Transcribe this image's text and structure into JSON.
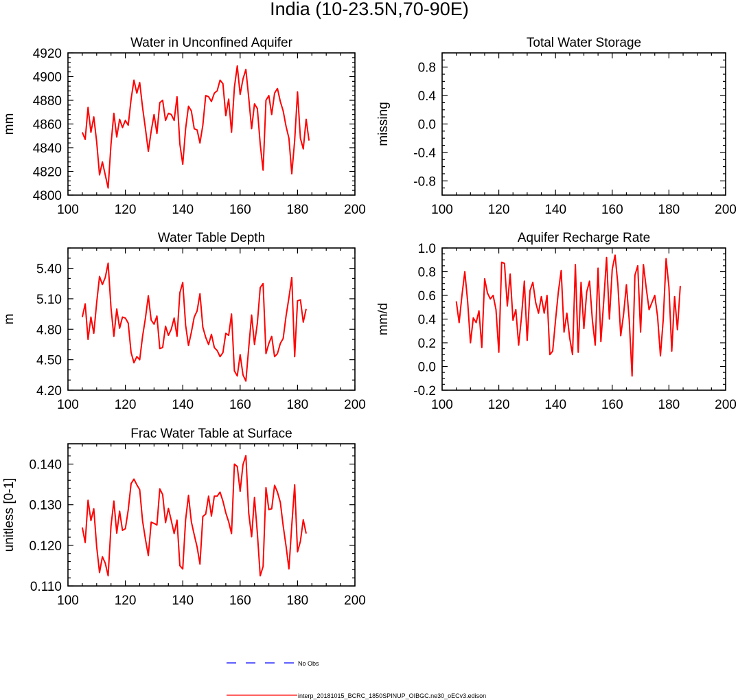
{
  "figure": {
    "title": "India (10-23.5N,70-90E)",
    "legend": {
      "obs_label": "No Obs",
      "model_label": "interp_20181015_BCRC_1850SPINUP_OIBGC.ne30_oECv3.edison",
      "obs_color": "#0000ff",
      "model_color": "#ff0000"
    }
  },
  "chart_data": [
    {
      "type": "line",
      "title": "Water in Unconfined Aquifer",
      "ylabel": "mm",
      "xlim": [
        100,
        200
      ],
      "ylim": [
        4800,
        4920
      ],
      "xticks": [
        100,
        120,
        140,
        160,
        180,
        200
      ],
      "xtick_labels": [
        "100",
        "120",
        "140",
        "160",
        "180",
        "200"
      ],
      "yticks": [
        4800,
        4820,
        4840,
        4860,
        4880,
        4900,
        4920
      ],
      "ytick_labels": [
        "4800",
        "4820",
        "4840",
        "4860",
        "4880",
        "4900",
        "4920"
      ],
      "yminor": 5,
      "grid": false,
      "x_start": 105,
      "series": [
        {
          "color": "#ff0000",
          "values": [
            4853,
            4847,
            4874,
            4853,
            4866,
            4845,
            4817,
            4828,
            4817,
            4806,
            4843,
            4869,
            4849,
            4864,
            4857,
            4863,
            4859,
            4881,
            4897,
            4886,
            4895,
            4874,
            4856,
            4837,
            4854,
            4868,
            4852,
            4878,
            4880,
            4863,
            4869,
            4868,
            4863,
            4883,
            4843,
            4826,
            4856,
            4875,
            4871,
            4856,
            4855,
            4844,
            4859,
            4884,
            4883,
            4879,
            4886,
            4888,
            4897,
            4894,
            4867,
            4881,
            4853,
            4891,
            4909,
            4885,
            4898,
            4906,
            4882,
            4856,
            4877,
            4873,
            4843,
            4821,
            4880,
            4884,
            4868,
            4886,
            4890,
            4879,
            4871,
            4858,
            4848,
            4818,
            4846,
            4887,
            4848,
            4839,
            4864,
            4846
          ]
        }
      ]
    },
    {
      "type": "line",
      "title": "Total Water Storage",
      "ylabel": "missing",
      "xlim": [
        100,
        200
      ],
      "ylim": [
        -1,
        1
      ],
      "xticks": [
        100,
        120,
        140,
        160,
        180,
        200
      ],
      "xtick_labels": [
        "100",
        "120",
        "140",
        "160",
        "180",
        "200"
      ],
      "yticks": [
        -0.8,
        -0.4,
        0.0,
        0.4,
        0.8
      ],
      "ytick_labels": [
        "-0.8",
        "-0.4",
        "0.0",
        "0.4",
        "0.8"
      ],
      "yminor": 4,
      "grid": false,
      "series": []
    },
    {
      "type": "line",
      "title": "Water Table Depth",
      "ylabel": "m",
      "xlim": [
        100,
        200
      ],
      "ylim": [
        4.2,
        5.6
      ],
      "xticks": [
        100,
        120,
        140,
        160,
        180,
        200
      ],
      "xtick_labels": [
        "100",
        "120",
        "140",
        "160",
        "180",
        "200"
      ],
      "yticks": [
        4.2,
        4.5,
        4.8,
        5.1,
        5.4
      ],
      "ytick_labels": [
        "4.20",
        "4.50",
        "4.80",
        "5.10",
        "5.40"
      ],
      "yminor": 3,
      "grid": false,
      "x_start": 105,
      "series": [
        {
          "color": "#ff0000",
          "values": [
            4.92,
            5.05,
            4.7,
            4.92,
            4.76,
            5.06,
            5.32,
            5.24,
            5.31,
            5.45,
            5.01,
            4.73,
            5.0,
            4.81,
            4.92,
            4.91,
            4.86,
            4.57,
            4.47,
            4.53,
            4.5,
            4.73,
            4.91,
            5.13,
            4.89,
            4.85,
            4.93,
            4.61,
            4.62,
            4.83,
            4.74,
            4.8,
            4.91,
            4.73,
            5.16,
            5.26,
            4.84,
            4.64,
            4.77,
            4.92,
            4.98,
            5.15,
            4.82,
            4.72,
            4.65,
            4.75,
            4.62,
            4.59,
            4.53,
            4.57,
            4.76,
            4.74,
            4.95,
            4.39,
            4.34,
            4.55,
            4.35,
            4.29,
            4.62,
            4.94,
            4.65,
            4.86,
            5.21,
            5.25,
            4.56,
            4.66,
            4.73,
            4.53,
            4.56,
            4.66,
            4.71,
            4.93,
            5.11,
            5.31,
            4.53,
            5.08,
            5.09,
            4.87,
            5.0
          ]
        }
      ]
    },
    {
      "type": "line",
      "title": "Aquifer Recharge Rate",
      "ylabel": "mm/d",
      "xlim": [
        100,
        200
      ],
      "ylim": [
        -0.2,
        1.0
      ],
      "xticks": [
        100,
        120,
        140,
        160,
        180,
        200
      ],
      "xtick_labels": [
        "100",
        "120",
        "140",
        "160",
        "180",
        "200"
      ],
      "yticks": [
        -0.2,
        0.0,
        0.2,
        0.4,
        0.6,
        0.8,
        1.0
      ],
      "ytick_labels": [
        "-0.2",
        "0.0",
        "0.2",
        "0.4",
        "0.6",
        "0.8",
        "1.0"
      ],
      "yminor": 4,
      "grid": false,
      "x_start": 105,
      "series": [
        {
          "color": "#ff0000",
          "values": [
            0.55,
            0.37,
            0.6,
            0.8,
            0.55,
            0.2,
            0.41,
            0.37,
            0.47,
            0.16,
            0.74,
            0.62,
            0.57,
            0.6,
            0.48,
            0.12,
            0.88,
            0.87,
            0.51,
            0.78,
            0.39,
            0.48,
            0.18,
            0.42,
            0.72,
            0.22,
            0.64,
            0.71,
            0.54,
            0.45,
            0.59,
            0.45,
            0.6,
            0.1,
            0.13,
            0.39,
            0.63,
            0.81,
            0.29,
            0.45,
            0.24,
            0.1,
            0.86,
            0.12,
            0.71,
            0.32,
            0.63,
            0.72,
            0.39,
            0.18,
            0.83,
            0.21,
            0.55,
            0.92,
            0.4,
            0.82,
            0.94,
            0.69,
            0.26,
            0.44,
            0.69,
            0.39,
            -0.08,
            0.77,
            0.85,
            0.29,
            0.86,
            0.66,
            0.48,
            0.54,
            0.6,
            0.42,
            0.09,
            0.4,
            0.91,
            0.67,
            0.13,
            0.59,
            0.31,
            0.68
          ]
        }
      ]
    },
    {
      "type": "line",
      "title": "Frac Water Table at Surface",
      "ylabel": "unitless [0-1]",
      "xlim": [
        100,
        200
      ],
      "ylim": [
        0.11,
        0.145
      ],
      "xticks": [
        100,
        120,
        140,
        160,
        180,
        200
      ],
      "xtick_labels": [
        "100",
        "120",
        "140",
        "160",
        "180",
        "200"
      ],
      "yticks": [
        0.11,
        0.12,
        0.13,
        0.14
      ],
      "ytick_labels": [
        "0.110",
        "0.120",
        "0.130",
        "0.140"
      ],
      "yminor": 5,
      "grid": false,
      "x_start": 105,
      "series": [
        {
          "color": "#ff0000",
          "values": [
            0.1244,
            0.1207,
            0.1311,
            0.1261,
            0.129,
            0.1197,
            0.1133,
            0.1172,
            0.1156,
            0.1125,
            0.1248,
            0.1309,
            0.123,
            0.1284,
            0.1237,
            0.1241,
            0.1287,
            0.1352,
            0.1363,
            0.1349,
            0.1337,
            0.126,
            0.1215,
            0.1175,
            0.1257,
            0.1254,
            0.125,
            0.1339,
            0.1325,
            0.1256,
            0.1291,
            0.1261,
            0.1229,
            0.1262,
            0.115,
            0.1142,
            0.1263,
            0.1323,
            0.1258,
            0.1226,
            0.1196,
            0.1154,
            0.1271,
            0.1277,
            0.1321,
            0.1272,
            0.1321,
            0.1321,
            0.1331,
            0.1309,
            0.128,
            0.1258,
            0.1229,
            0.14,
            0.1394,
            0.1333,
            0.1399,
            0.1421,
            0.1279,
            0.1221,
            0.1318,
            0.123,
            0.1125,
            0.1148,
            0.1342,
            0.1288,
            0.129,
            0.1348,
            0.1331,
            0.1306,
            0.1248,
            0.1198,
            0.1142,
            0.125,
            0.1349,
            0.1184,
            0.121,
            0.1263,
            0.1229
          ]
        }
      ]
    }
  ]
}
